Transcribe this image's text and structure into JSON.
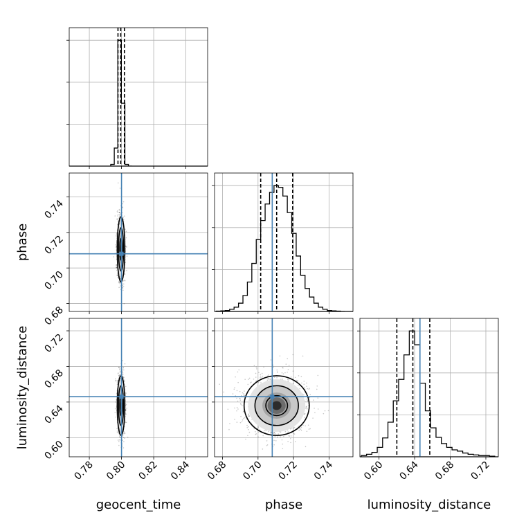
{
  "chart_data": {
    "type": "corner",
    "parameters": [
      "geocent_time",
      "phase",
      "luminosity_distance"
    ],
    "axis_labels": [
      "geocent_time",
      "phase",
      "luminosity_distance"
    ],
    "truths": {
      "geocent_time": 0.8,
      "phase": 0.708,
      "luminosity_distance": 0.646
    },
    "ranges": {
      "geocent_time": [
        0.7675,
        0.8535
      ],
      "phase": [
        0.6755,
        0.7535
      ],
      "luminosity_distance": [
        0.5785,
        0.734
      ]
    },
    "ticks": {
      "geocent_time": {
        "values": [
          0.78,
          0.8,
          0.82,
          0.84
        ],
        "labels": [
          "0.78",
          "0.80",
          "0.82",
          "0.84"
        ]
      },
      "phase": {
        "values": [
          0.68,
          0.7,
          0.72,
          0.74
        ],
        "labels": [
          "0.68",
          "0.70",
          "0.72",
          "0.74"
        ]
      },
      "luminosity_distance": {
        "values": [
          0.6,
          0.64,
          0.68,
          0.72
        ],
        "labels": [
          "0.60",
          "0.64",
          "0.68",
          "0.72"
        ]
      }
    },
    "grid": true,
    "quantiles": {
      "geocent_time": [
        0.7978,
        0.7995,
        0.8018
      ],
      "phase": [
        0.7015,
        0.7105,
        0.7195
      ],
      "luminosity_distance": [
        0.62,
        0.638,
        0.657
      ]
    },
    "histograms": {
      "geocent_time": {
        "edges": [
          0.7933,
          0.7955,
          0.7977,
          0.7999,
          0.8021,
          0.8043,
          0.8065
        ],
        "counts": [
          4,
          43,
          300,
          150,
          4,
          0
        ]
      },
      "phase": {
        "edges": [
          0.6765,
          0.679,
          0.6815,
          0.684,
          0.6865,
          0.689,
          0.6915,
          0.694,
          0.6965,
          0.699,
          0.7015,
          0.704,
          0.7065,
          0.709,
          0.7115,
          0.714,
          0.7165,
          0.719,
          0.7215,
          0.724,
          0.7265,
          0.729,
          0.7315,
          0.734,
          0.7365,
          0.739,
          0.7415,
          0.744,
          0.7465,
          0.749
        ],
        "counts": [
          1,
          2,
          3,
          7,
          14,
          27,
          52,
          96,
          157,
          235,
          297,
          351,
          389,
          411,
          405,
          377,
          323,
          255,
          181,
          118,
          75,
          47,
          27,
          14,
          7,
          3,
          2,
          1,
          0
        ]
      },
      "luminosity_distance": {
        "edges": [
          0.58,
          0.586,
          0.592,
          0.598,
          0.604,
          0.61,
          0.616,
          0.622,
          0.628,
          0.634,
          0.64,
          0.646,
          0.652,
          0.658,
          0.664,
          0.67,
          0.676,
          0.682,
          0.688,
          0.694,
          0.7,
          0.706,
          0.712,
          0.718,
          0.724,
          0.73
        ],
        "counts": [
          2,
          4,
          7,
          15,
          30,
          55,
          89,
          123,
          162,
          200,
          178,
          117,
          73,
          46,
          31,
          21,
          15,
          11,
          9,
          6,
          4,
          3,
          2,
          2,
          1
        ]
      }
    },
    "density_2d": [
      {
        "x": "geocent_time",
        "y": "phase",
        "center": [
          0.7997,
          0.7105
        ],
        "sigma": [
          0.0011,
          0.0085
        ],
        "contour_levels": [
          1,
          2,
          3
        ]
      },
      {
        "x": "geocent_time",
        "y": "luminosity_distance",
        "center": [
          0.7997,
          0.636
        ],
        "sigma": [
          0.0011,
          0.0155
        ],
        "contour_levels": [
          1,
          2,
          3
        ]
      },
      {
        "x": "phase",
        "y": "luminosity_distance",
        "center": [
          0.7105,
          0.636
        ],
        "sigma": [
          0.0085,
          0.0155
        ],
        "contour_levels": [
          1,
          2,
          3
        ]
      }
    ]
  }
}
